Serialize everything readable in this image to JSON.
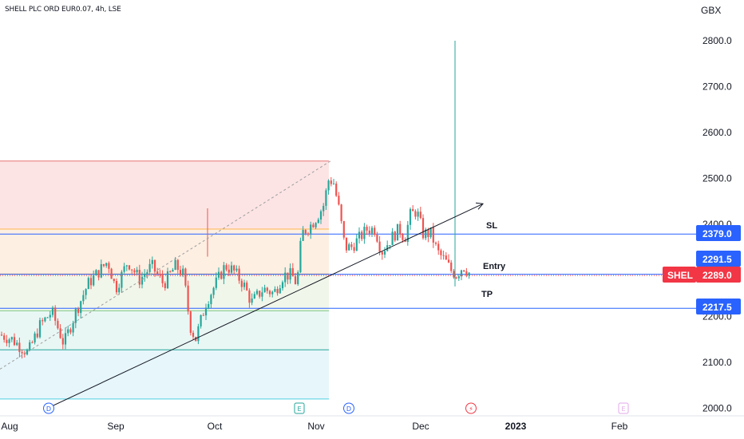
{
  "header": {
    "symbol_title": "SHELL PLC ORD EUR0.07, 4h, LSE",
    "currency": "GBX"
  },
  "chart_data": {
    "type": "candlestick",
    "ylim": [
      1985,
      2830
    ],
    "y_ticks": [
      "2000.0",
      "2100.0",
      "2200.0",
      "2300.0",
      "2400.0",
      "2500.0",
      "2600.0",
      "2700.0",
      "2800.0"
    ],
    "x_ticks": [
      "Aug",
      "Sep",
      "Oct",
      "Nov",
      "Dec",
      "2023",
      "Feb"
    ],
    "events": [
      {
        "type": "dividend",
        "label": "D",
        "month": "Aug"
      },
      {
        "type": "earnings",
        "label": "E",
        "month": "Oct"
      },
      {
        "type": "dividend",
        "label": "D",
        "month": "Nov"
      },
      {
        "type": "split",
        "label": "⚡",
        "month": "Dec"
      },
      {
        "type": "earnings",
        "label": "E",
        "month": "Feb"
      }
    ],
    "price_levels": [
      {
        "label": "SL",
        "value": 2379.0,
        "tag": "2379.0",
        "color": "#2962ff"
      },
      {
        "label": "Entry",
        "value": 2291.5,
        "tag": "2291.5",
        "color": "#2962ff"
      },
      {
        "label": "TP",
        "value": 2217.5,
        "tag": "2217.5",
        "color": "#2962ff"
      }
    ],
    "last_price": {
      "symbol": "SHEL",
      "value": 2289.0,
      "tag": "2289.0",
      "color": "#f23645"
    },
    "spike_high": 2800,
    "fib_levels": [
      2538,
      2390,
      2292,
      2212,
      2127,
      2020
    ],
    "trendline": {
      "from": [
        62,
        2002
      ],
      "to": [
        605,
        2445
      ]
    },
    "colors": {
      "up": "#26a69a",
      "down": "#ef5350",
      "level": "#2962ff"
    }
  }
}
